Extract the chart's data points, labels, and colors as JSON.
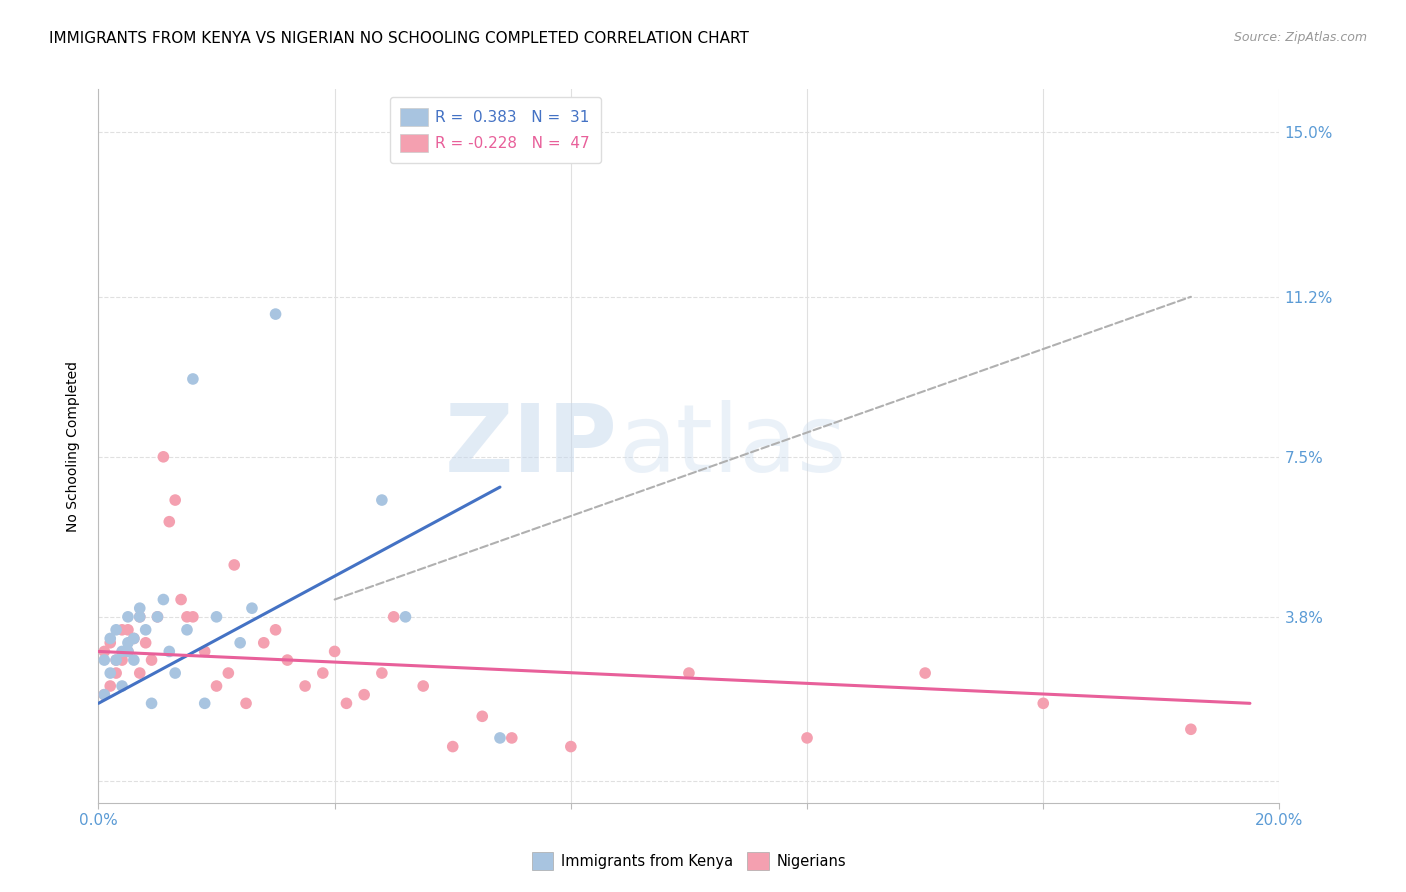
{
  "title": "IMMIGRANTS FROM KENYA VS NIGERIAN NO SCHOOLING COMPLETED CORRELATION CHART",
  "source": "Source: ZipAtlas.com",
  "ylabel": "No Schooling Completed",
  "xlabel": "",
  "xlim": [
    0.0,
    0.2
  ],
  "ylim": [
    -0.005,
    0.16
  ],
  "xticks": [
    0.0,
    0.04,
    0.08,
    0.12,
    0.16,
    0.2
  ],
  "xticklabels": [
    "0.0%",
    "",
    "",
    "",
    "",
    "20.0%"
  ],
  "ytick_positions": [
    0.0,
    0.038,
    0.075,
    0.112,
    0.15
  ],
  "ytick_labels": [
    "",
    "3.8%",
    "7.5%",
    "11.2%",
    "15.0%"
  ],
  "kenya_R": "0.383",
  "kenya_N": "31",
  "nigeria_R": "-0.228",
  "nigeria_N": "47",
  "kenya_color": "#a8c4e0",
  "nigeria_color": "#f4a0b0",
  "kenya_line_color": "#4472c4",
  "nigeria_line_color": "#e8609a",
  "trendline_color": "#b0b0b0",
  "background_color": "#ffffff",
  "watermark_zip": "ZIP",
  "watermark_atlas": "atlas",
  "grid_color": "#e0e0e0",
  "title_fontsize": 11,
  "axis_label_fontsize": 10,
  "tick_fontsize": 11,
  "right_tick_color": "#5b9bd5",
  "kenya_line_x": [
    0.0,
    0.068
  ],
  "kenya_line_y": [
    0.018,
    0.068
  ],
  "nigeria_line_x": [
    0.0,
    0.195
  ],
  "nigeria_line_y": [
    0.03,
    0.018
  ],
  "dash_line_x": [
    0.04,
    0.185
  ],
  "dash_line_y": [
    0.042,
    0.112
  ],
  "kenya_points_x": [
    0.001,
    0.001,
    0.002,
    0.002,
    0.003,
    0.003,
    0.004,
    0.004,
    0.005,
    0.005,
    0.005,
    0.006,
    0.006,
    0.007,
    0.007,
    0.008,
    0.009,
    0.01,
    0.011,
    0.012,
    0.013,
    0.015,
    0.016,
    0.018,
    0.02,
    0.024,
    0.026,
    0.03,
    0.048,
    0.052,
    0.068
  ],
  "kenya_points_y": [
    0.02,
    0.028,
    0.025,
    0.033,
    0.028,
    0.035,
    0.022,
    0.03,
    0.03,
    0.032,
    0.038,
    0.028,
    0.033,
    0.038,
    0.04,
    0.035,
    0.018,
    0.038,
    0.042,
    0.03,
    0.025,
    0.035,
    0.093,
    0.018,
    0.038,
    0.032,
    0.04,
    0.108,
    0.065,
    0.038,
    0.01
  ],
  "nigeria_points_x": [
    0.001,
    0.001,
    0.002,
    0.002,
    0.003,
    0.003,
    0.004,
    0.004,
    0.005,
    0.005,
    0.006,
    0.007,
    0.007,
    0.008,
    0.009,
    0.01,
    0.011,
    0.012,
    0.013,
    0.014,
    0.015,
    0.016,
    0.018,
    0.02,
    0.022,
    0.023,
    0.025,
    0.028,
    0.03,
    0.032,
    0.035,
    0.038,
    0.04,
    0.042,
    0.045,
    0.048,
    0.05,
    0.055,
    0.06,
    0.065,
    0.07,
    0.08,
    0.1,
    0.12,
    0.14,
    0.16,
    0.185
  ],
  "nigeria_points_y": [
    0.02,
    0.03,
    0.022,
    0.032,
    0.025,
    0.028,
    0.028,
    0.035,
    0.03,
    0.035,
    0.033,
    0.025,
    0.038,
    0.032,
    0.028,
    0.038,
    0.075,
    0.06,
    0.065,
    0.042,
    0.038,
    0.038,
    0.03,
    0.022,
    0.025,
    0.05,
    0.018,
    0.032,
    0.035,
    0.028,
    0.022,
    0.025,
    0.03,
    0.018,
    0.02,
    0.025,
    0.038,
    0.022,
    0.008,
    0.015,
    0.01,
    0.008,
    0.025,
    0.01,
    0.025,
    0.018,
    0.012
  ]
}
